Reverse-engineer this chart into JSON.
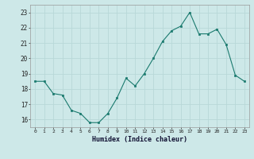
{
  "x": [
    0,
    1,
    2,
    3,
    4,
    5,
    6,
    7,
    8,
    9,
    10,
    11,
    12,
    13,
    14,
    15,
    16,
    17,
    18,
    19,
    20,
    21,
    22,
    23
  ],
  "y": [
    18.5,
    18.5,
    17.7,
    17.6,
    16.6,
    16.4,
    15.8,
    15.8,
    16.4,
    17.4,
    18.7,
    18.2,
    19.0,
    20.0,
    21.1,
    21.8,
    22.1,
    23.0,
    21.6,
    21.6,
    21.9,
    20.9,
    18.9,
    18.5
  ],
  "line_color": "#1a7a6e",
  "marker_color": "#1a7a6e",
  "bg_color": "#cde8e8",
  "grid_color": "#b8d8d8",
  "xlabel": "Humidex (Indice chaleur)",
  "ylabel_ticks": [
    16,
    17,
    18,
    19,
    20,
    21,
    22,
    23
  ],
  "xlim": [
    -0.5,
    23.5
  ],
  "ylim": [
    15.5,
    23.5
  ],
  "xticks": [
    0,
    1,
    2,
    3,
    4,
    5,
    6,
    7,
    8,
    9,
    10,
    11,
    12,
    13,
    14,
    15,
    16,
    17,
    18,
    19,
    20,
    21,
    22,
    23
  ]
}
